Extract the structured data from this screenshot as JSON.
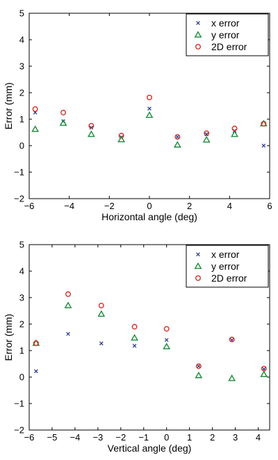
{
  "colors": {
    "x_error": "#2b3f8f",
    "y_error": "#1a8a3a",
    "err_2d": "#d9302a",
    "axis": "#000000"
  },
  "chart_data": [
    {
      "type": "scatter",
      "xlabel": "Horizontal angle (deg)",
      "ylabel": "Error (mm)",
      "xlim": [
        -6,
        6
      ],
      "ylim": [
        -2,
        5
      ],
      "xticks": [
        -6,
        -4,
        -2,
        0,
        2,
        4,
        6
      ],
      "yticks": [
        -2,
        -1,
        0,
        1,
        2,
        3,
        4,
        5
      ],
      "xtick_labels": [
        "−6",
        "−4",
        "−2",
        "0",
        "2",
        "4",
        "6"
      ],
      "ytick_labels": [
        "−2",
        "−1",
        "0",
        "1",
        "2",
        "3",
        "4",
        "5"
      ],
      "grid": false,
      "legend_position": "top-right",
      "series": [
        {
          "name": "x error",
          "marker": "x",
          "color": "#2b3f8f",
          "points": [
            [
              -5.7,
              1.25
            ],
            [
              -4.3,
              0.92
            ],
            [
              -2.9,
              0.68
            ],
            [
              -1.4,
              0.32
            ],
            [
              0.0,
              1.4
            ],
            [
              1.4,
              0.33
            ],
            [
              2.85,
              0.43
            ],
            [
              4.25,
              0.56
            ],
            [
              5.7,
              0.0
            ]
          ]
        },
        {
          "name": "y error",
          "marker": "triangle",
          "color": "#1a8a3a",
          "points": [
            [
              -5.7,
              0.62
            ],
            [
              -4.3,
              0.85
            ],
            [
              -2.9,
              0.43
            ],
            [
              -1.4,
              0.23
            ],
            [
              0.0,
              1.15
            ],
            [
              1.4,
              0.03
            ],
            [
              2.85,
              0.22
            ],
            [
              4.25,
              0.43
            ],
            [
              5.7,
              0.83
            ]
          ]
        },
        {
          "name": "2D error",
          "marker": "circle",
          "color": "#d9302a",
          "points": [
            [
              -5.7,
              1.38
            ],
            [
              -4.3,
              1.25
            ],
            [
              -2.9,
              0.75
            ],
            [
              -1.4,
              0.38
            ],
            [
              0.0,
              1.82
            ],
            [
              1.4,
              0.33
            ],
            [
              2.85,
              0.47
            ],
            [
              4.25,
              0.65
            ],
            [
              5.7,
              0.83
            ]
          ]
        }
      ]
    },
    {
      "type": "scatter",
      "xlabel": "Vertical angle (deg)",
      "ylabel": "Error (mm)",
      "xlim": [
        -6,
        4.5
      ],
      "ylim": [
        -2,
        5
      ],
      "xticks": [
        -6,
        -5,
        -4,
        -3,
        -2,
        -1,
        0,
        1,
        2,
        3,
        4
      ],
      "yticks": [
        -2,
        -1,
        0,
        1,
        2,
        3,
        4,
        5
      ],
      "xtick_labels": [
        "−6",
        "−5",
        "−4",
        "−3",
        "−2",
        "−1",
        "0",
        "1",
        "2",
        "3",
        "4"
      ],
      "ytick_labels": [
        "−2",
        "−1",
        "0",
        "1",
        "2",
        "3",
        "4",
        "5"
      ],
      "grid": false,
      "legend_position": "top-right",
      "series": [
        {
          "name": "x error",
          "marker": "x",
          "color": "#2b3f8f",
          "points": [
            [
              -5.7,
              0.22
            ],
            [
              -4.3,
              1.63
            ],
            [
              -2.85,
              1.27
            ],
            [
              -1.4,
              1.18
            ],
            [
              0.0,
              1.4
            ],
            [
              1.4,
              0.41
            ],
            [
              2.85,
              1.4
            ],
            [
              4.25,
              0.3
            ]
          ]
        },
        {
          "name": "y error",
          "marker": "triangle",
          "color": "#1a8a3a",
          "points": [
            [
              -5.7,
              1.28
            ],
            [
              -4.3,
              2.7
            ],
            [
              -2.85,
              2.38
            ],
            [
              -1.4,
              1.48
            ],
            [
              0.0,
              1.15
            ],
            [
              1.4,
              0.06
            ],
            [
              2.85,
              -0.05
            ],
            [
              4.25,
              0.1
            ]
          ]
        },
        {
          "name": "2D error",
          "marker": "circle",
          "color": "#d9302a",
          "points": [
            [
              -5.7,
              1.28
            ],
            [
              -4.3,
              3.13
            ],
            [
              -2.85,
              2.7
            ],
            [
              -1.4,
              1.9
            ],
            [
              0.0,
              1.82
            ],
            [
              1.4,
              0.41
            ],
            [
              2.85,
              1.42
            ],
            [
              4.25,
              0.32
            ]
          ]
        }
      ]
    }
  ]
}
